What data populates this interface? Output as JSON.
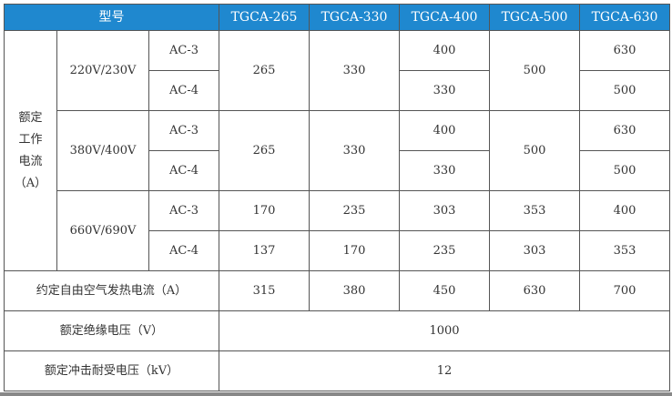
{
  "header": {
    "model_label": "型号",
    "models": [
      "TGCA-265",
      "TGCA-330",
      "TGCA-400",
      "TGCA-500",
      "TGCA-630"
    ]
  },
  "rated_current": {
    "label": "额定\n工作\n电流\n（A）",
    "groups": [
      {
        "voltage": "220V/230V",
        "ac3": "AC-3",
        "ac4": "AC-4",
        "ac3_values": [
          "265",
          "330",
          "400",
          "500",
          "630"
        ],
        "ac4_values": [
          "265",
          "330",
          "330",
          "500",
          "500"
        ]
      },
      {
        "voltage": "380V/400V",
        "ac3": "AC-3",
        "ac4": "AC-4",
        "ac3_values": [
          "265",
          "330",
          "400",
          "500",
          "630"
        ],
        "ac4_values": [
          "265",
          "330",
          "330",
          "500",
          "500"
        ]
      },
      {
        "voltage": "660V/690V",
        "ac3": "AC-3",
        "ac4": "AC-4",
        "ac3_values": [
          "170",
          "235",
          "303",
          "353",
          "400"
        ],
        "ac4_values": [
          "137",
          "170",
          "235",
          "303",
          "353"
        ]
      }
    ]
  },
  "thermal_current": {
    "label": "约定自由空气发热电流（A）",
    "values": [
      "315",
      "380",
      "450",
      "630",
      "700"
    ]
  },
  "insulation_voltage": {
    "label": "额定绝缘电压（V）",
    "value": "1000"
  },
  "impulse_voltage": {
    "label": "额定冲击耐受电压（kV）",
    "value": "12"
  }
}
